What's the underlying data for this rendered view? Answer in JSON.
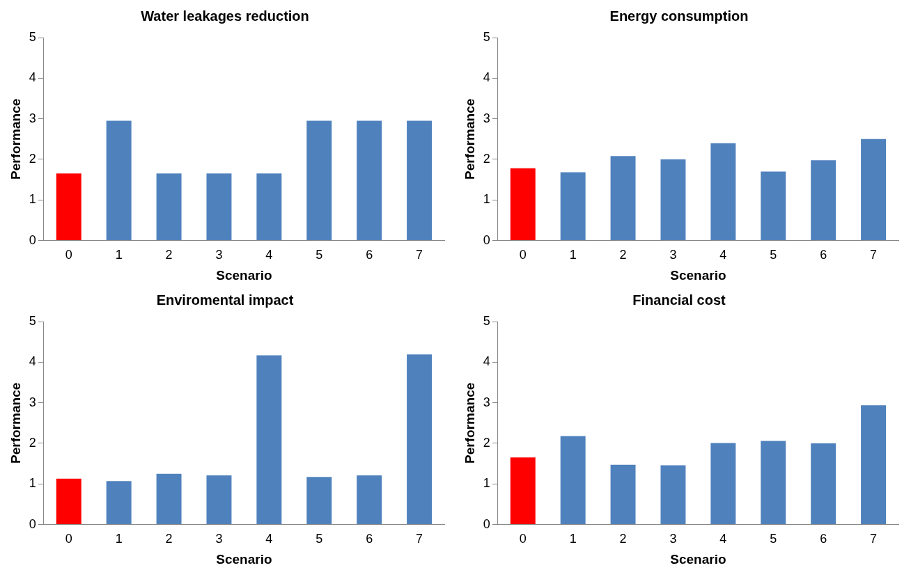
{
  "chart_data": [
    {
      "type": "bar",
      "title": "Water leakages reduction",
      "xlabel": "Scenario",
      "ylabel": "Performance",
      "categories": [
        "0",
        "1",
        "2",
        "3",
        "4",
        "5",
        "6",
        "7"
      ],
      "values": [
        1.65,
        2.95,
        1.65,
        1.65,
        1.65,
        2.95,
        2.95,
        2.95
      ],
      "colors": [
        "#ff0000",
        "#4f81bd",
        "#4f81bd",
        "#4f81bd",
        "#4f81bd",
        "#4f81bd",
        "#4f81bd",
        "#4f81bd"
      ],
      "ylim": [
        0,
        5
      ],
      "yticks": [
        0,
        1,
        2,
        3,
        4,
        5
      ]
    },
    {
      "type": "bar",
      "title": "Energy consumption",
      "xlabel": "Scenario",
      "ylabel": "Performance",
      "categories": [
        "0",
        "1",
        "2",
        "3",
        "4",
        "5",
        "6",
        "7"
      ],
      "values": [
        1.78,
        1.68,
        2.08,
        2.0,
        2.4,
        1.7,
        1.98,
        2.5
      ],
      "colors": [
        "#ff0000",
        "#4f81bd",
        "#4f81bd",
        "#4f81bd",
        "#4f81bd",
        "#4f81bd",
        "#4f81bd",
        "#4f81bd"
      ],
      "ylim": [
        0,
        5
      ],
      "yticks": [
        0,
        1,
        2,
        3,
        4,
        5
      ]
    },
    {
      "type": "bar",
      "title": "Enviromental impact",
      "xlabel": "Scenario",
      "ylabel": "Performance",
      "categories": [
        "0",
        "1",
        "2",
        "3",
        "4",
        "5",
        "6",
        "7"
      ],
      "values": [
        1.13,
        1.07,
        1.25,
        1.21,
        4.17,
        1.17,
        1.21,
        4.19
      ],
      "colors": [
        "#ff0000",
        "#4f81bd",
        "#4f81bd",
        "#4f81bd",
        "#4f81bd",
        "#4f81bd",
        "#4f81bd",
        "#4f81bd"
      ],
      "ylim": [
        0,
        5
      ],
      "yticks": [
        0,
        1,
        2,
        3,
        4,
        5
      ]
    },
    {
      "type": "bar",
      "title": "Financial cost",
      "xlabel": "Scenario",
      "ylabel": "Performance",
      "categories": [
        "0",
        "1",
        "2",
        "3",
        "4",
        "5",
        "6",
        "7"
      ],
      "values": [
        1.65,
        2.18,
        1.47,
        1.46,
        2.01,
        2.06,
        2.0,
        2.94
      ],
      "colors": [
        "#ff0000",
        "#4f81bd",
        "#4f81bd",
        "#4f81bd",
        "#4f81bd",
        "#4f81bd",
        "#4f81bd",
        "#4f81bd"
      ],
      "ylim": [
        0,
        5
      ],
      "yticks": [
        0,
        1,
        2,
        3,
        4,
        5
      ]
    }
  ]
}
